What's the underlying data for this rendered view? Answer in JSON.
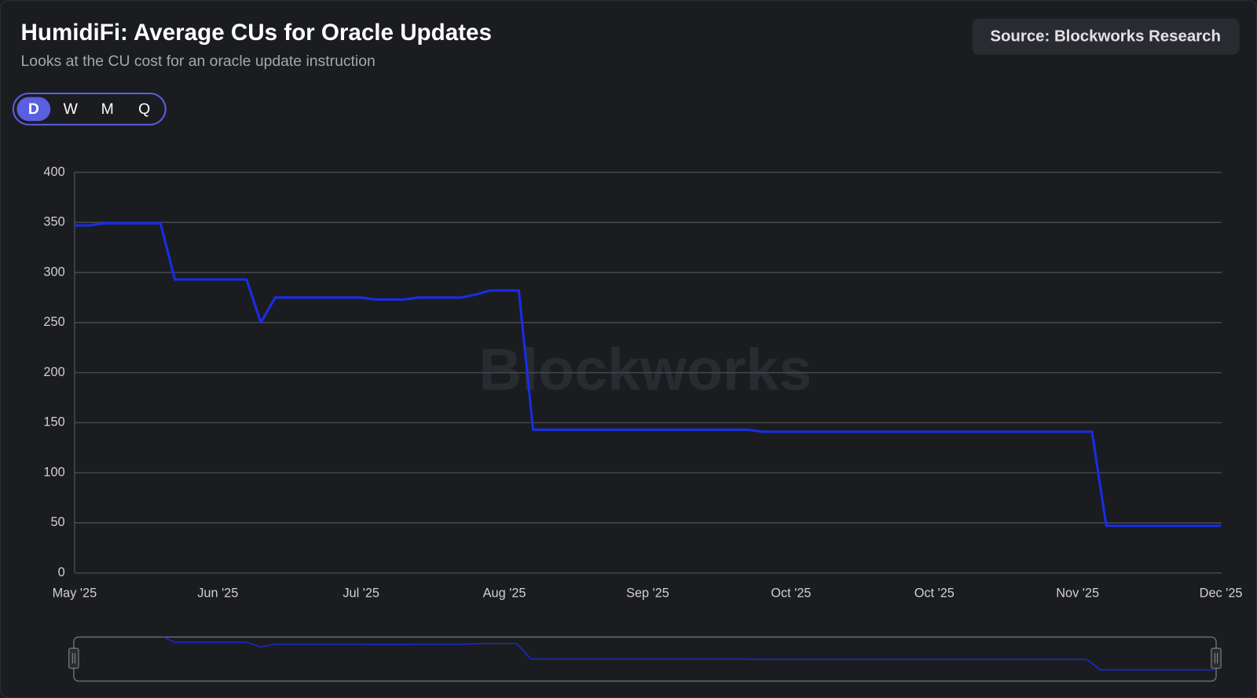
{
  "chart_data": {
    "type": "line",
    "title": "HumidiFi: Average CUs for Oracle Updates",
    "subtitle": "Looks at the CU cost for an oracle update instruction",
    "source": "Source: Blockworks Research",
    "watermark": "Blockworks",
    "range_buttons": [
      "D",
      "W",
      "M",
      "Q"
    ],
    "selected_range": "D",
    "categories": [
      "May '25",
      null,
      null,
      null,
      null,
      null,
      null,
      null,
      null,
      null,
      "Jun '25",
      null,
      null,
      null,
      null,
      null,
      null,
      null,
      null,
      null,
      "Jul '25",
      null,
      null,
      null,
      null,
      null,
      null,
      null,
      null,
      null,
      "Aug '25",
      null,
      null,
      null,
      null,
      null,
      null,
      null,
      null,
      null,
      "Sep '25",
      null,
      null,
      null,
      null,
      null,
      null,
      null,
      null,
      null,
      "Oct '25",
      null,
      null,
      null,
      null,
      null,
      null,
      null,
      null,
      null,
      "Oct '25",
      null,
      null,
      null,
      null,
      null,
      null,
      null,
      null,
      null,
      "Nov '25",
      null,
      null,
      null,
      null,
      null,
      null,
      null,
      null,
      null,
      "Dec '25"
    ],
    "series": [
      {
        "name": "Average CUs",
        "color": "#1a2ce8",
        "values": [
          347,
          347,
          349,
          349,
          349,
          349,
          349,
          293,
          293,
          293,
          293,
          293,
          293,
          250,
          275,
          275,
          275,
          275,
          275,
          275,
          275,
          273,
          273,
          273,
          275,
          275,
          275,
          275,
          278,
          282,
          282,
          282,
          143,
          143,
          143,
          143,
          143,
          143,
          143,
          143,
          143,
          143,
          143,
          143,
          143,
          143,
          143,
          143,
          141,
          141,
          141,
          141,
          141,
          141,
          141,
          141,
          141,
          141,
          141,
          141,
          141,
          141,
          141,
          141,
          141,
          141,
          141,
          141,
          141,
          141,
          141,
          141,
          47,
          47,
          47,
          47,
          47,
          47,
          47,
          47,
          47
        ]
      }
    ],
    "ylim": [
      0,
      400
    ],
    "yticks": [
      0,
      50,
      100,
      150,
      200,
      250,
      300,
      350,
      400
    ],
    "grid": true,
    "navigator": true
  }
}
